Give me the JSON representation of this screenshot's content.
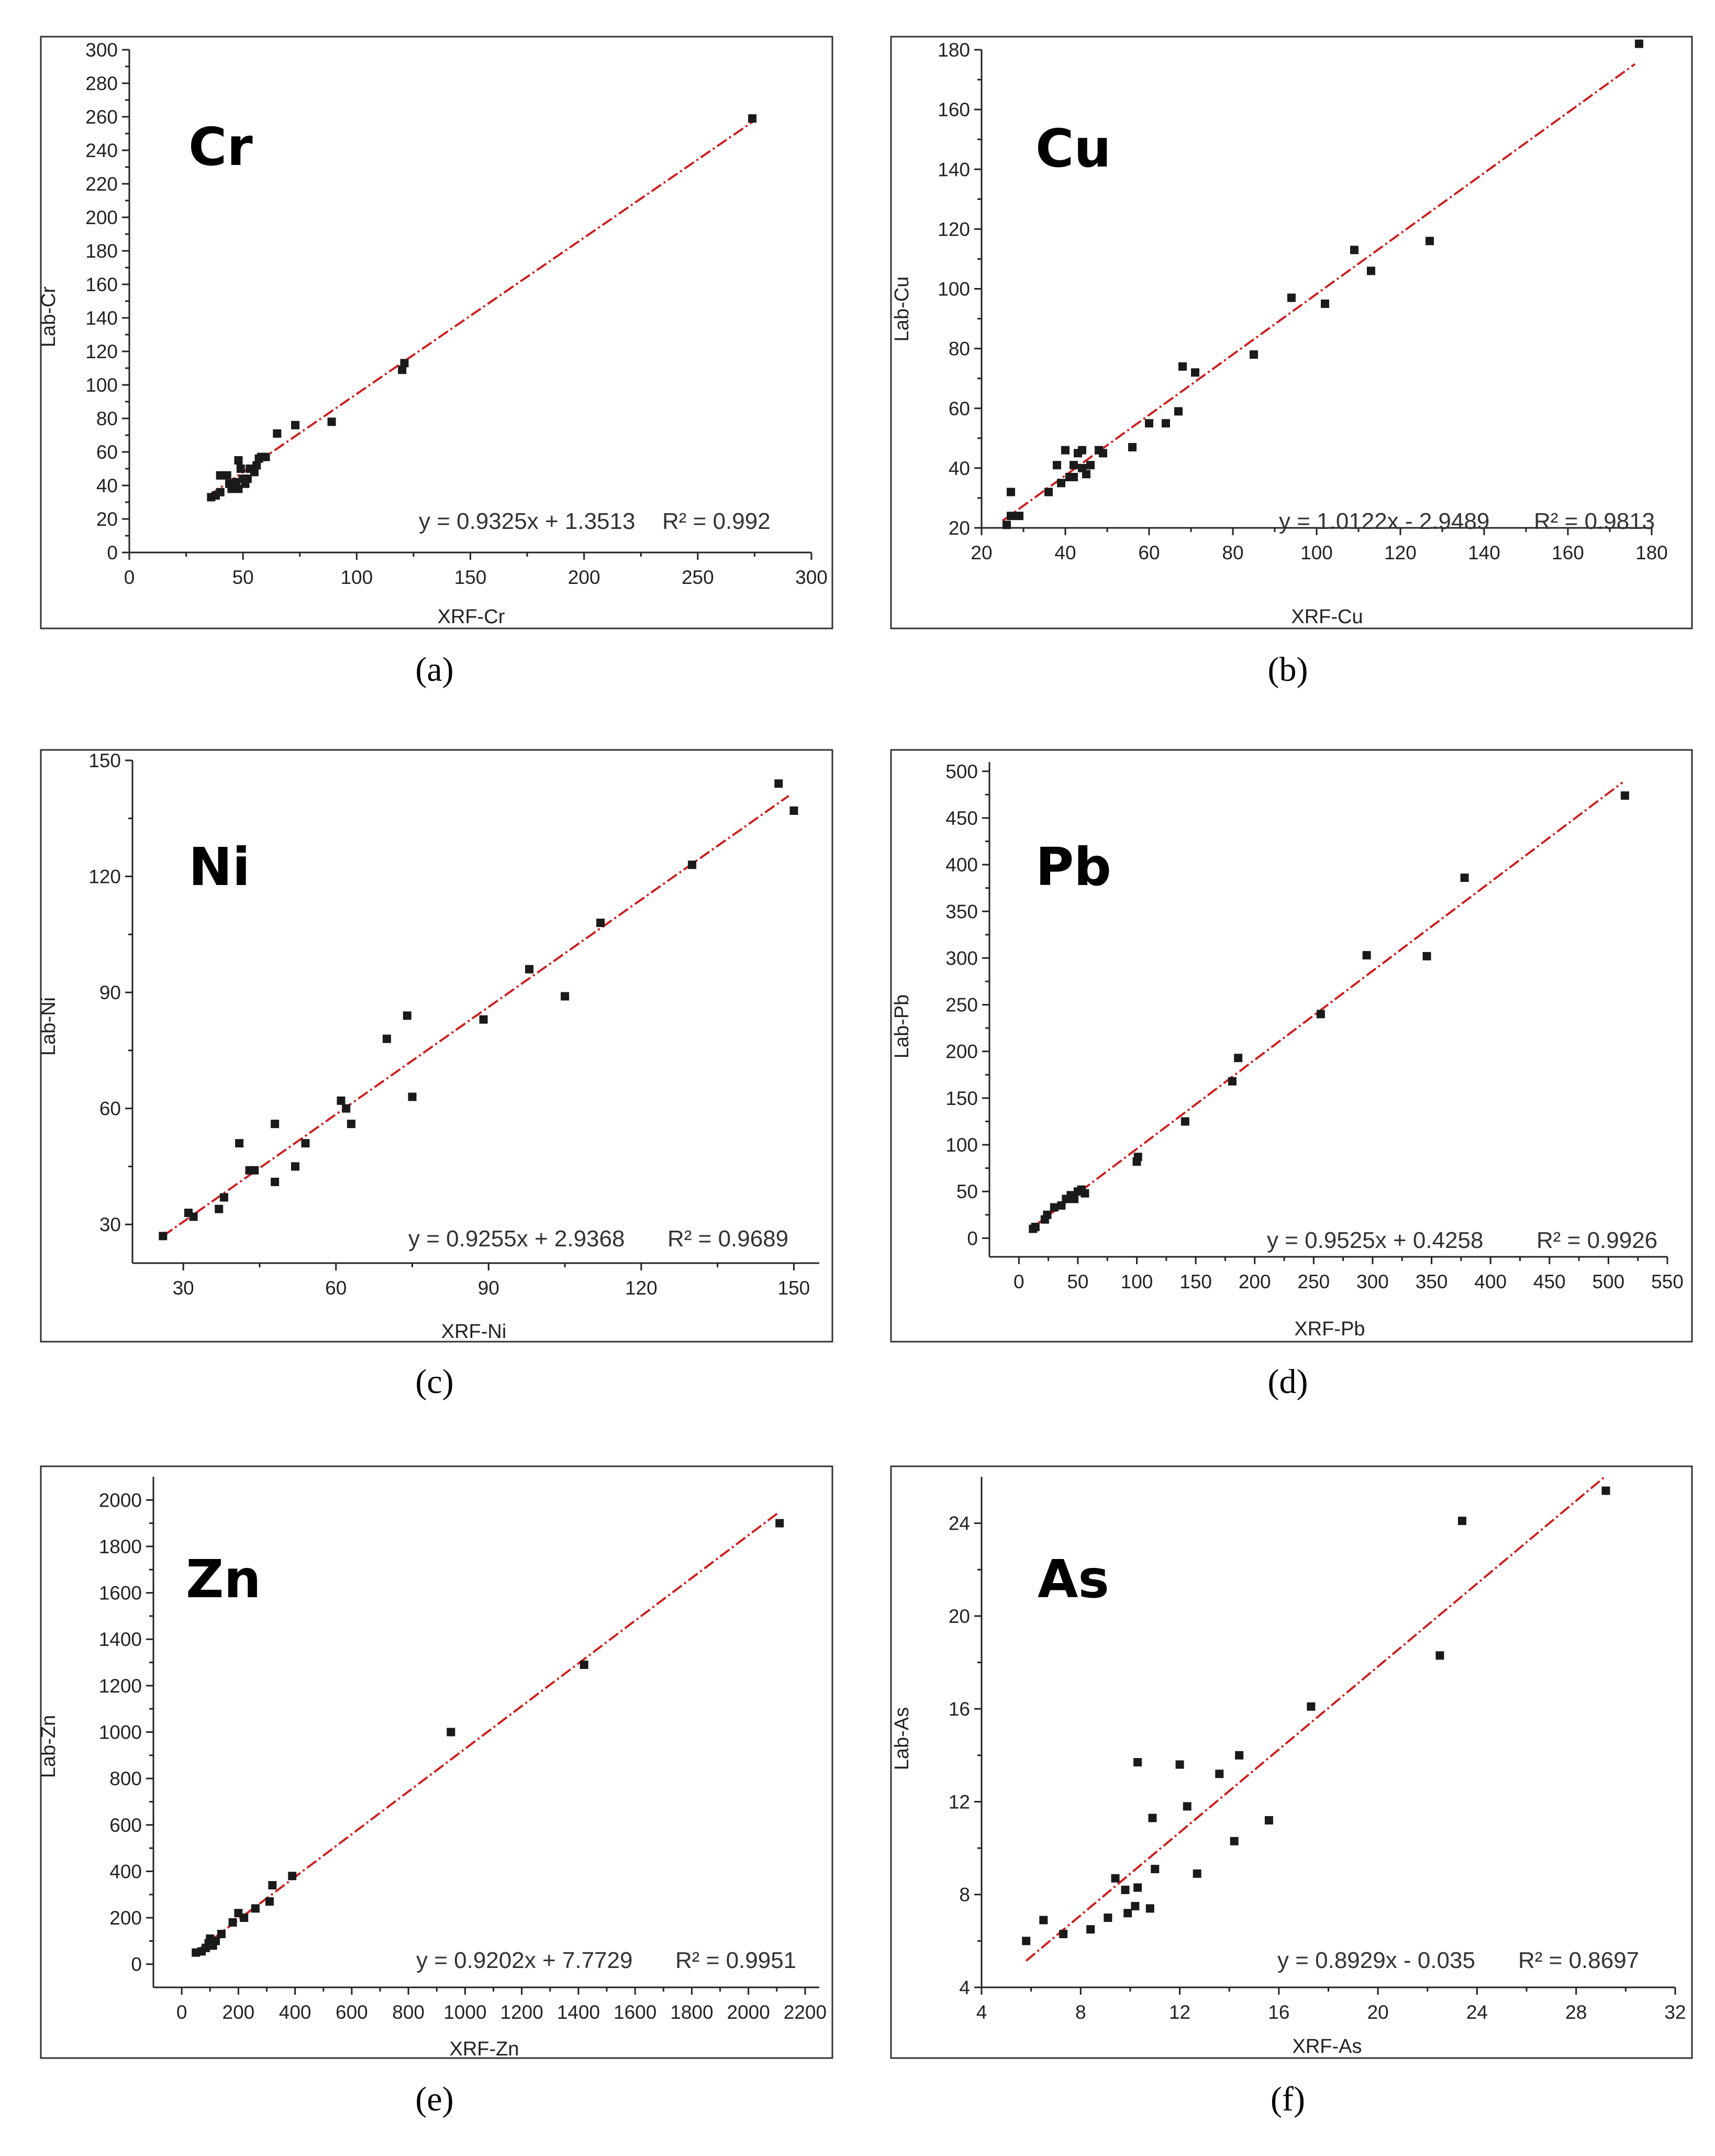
{
  "chart_data": [
    {
      "type": "scatter",
      "panel_label": "(a)",
      "title": "Cr",
      "xlabel": "XRF-Cr",
      "ylabel": "Lab-Cr",
      "xlim": [
        0,
        300
      ],
      "ylim": [
        0,
        300
      ],
      "xticks": [
        0,
        50,
        100,
        150,
        200,
        250,
        300
      ],
      "yticks": [
        0,
        20,
        40,
        60,
        80,
        100,
        120,
        140,
        160,
        180,
        200,
        220,
        240,
        260,
        280,
        300
      ],
      "equation": "y = 0.9325x + 1.3513",
      "r2": "R² = 0.992",
      "fit": {
        "slope": 0.9325,
        "intercept": 1.3513,
        "x_range": [
          35,
          275
        ]
      },
      "points": [
        [
          36,
          33
        ],
        [
          38,
          34
        ],
        [
          40,
          36
        ],
        [
          40,
          46
        ],
        [
          43,
          46
        ],
        [
          44,
          41
        ],
        [
          45,
          38
        ],
        [
          46,
          38
        ],
        [
          47,
          42
        ],
        [
          48,
          55
        ],
        [
          48,
          38
        ],
        [
          49,
          50
        ],
        [
          50,
          44
        ],
        [
          51,
          41
        ],
        [
          52,
          44
        ],
        [
          53,
          50
        ],
        [
          55,
          48
        ],
        [
          56,
          52
        ],
        [
          57,
          56
        ],
        [
          58,
          57
        ],
        [
          60,
          57
        ],
        [
          65,
          71
        ],
        [
          73,
          76
        ],
        [
          89,
          78
        ],
        [
          120,
          109
        ],
        [
          121,
          113
        ],
        [
          274,
          259
        ]
      ]
    },
    {
      "type": "scatter",
      "panel_label": "(b)",
      "title": "Cu",
      "xlabel": "XRF-Cu",
      "ylabel": "Lab-Cu",
      "xlim": [
        20,
        180
      ],
      "ylim": [
        20,
        180
      ],
      "xticks": [
        20,
        40,
        60,
        80,
        100,
        120,
        140,
        160,
        180
      ],
      "yticks": [
        20,
        40,
        60,
        80,
        100,
        120,
        140,
        160,
        180
      ],
      "equation": "y = 1.0122x - 2.9489",
      "r2": "R² = 0.9813",
      "fit": {
        "slope": 1.0122,
        "intercept": -2.9489,
        "x_range": [
          25,
          176
        ]
      },
      "points": [
        [
          26,
          21
        ],
        [
          27,
          32
        ],
        [
          27,
          24
        ],
        [
          29,
          24
        ],
        [
          36,
          32
        ],
        [
          38,
          41
        ],
        [
          39,
          35
        ],
        [
          40,
          46
        ],
        [
          41,
          37
        ],
        [
          42,
          41
        ],
        [
          42,
          37
        ],
        [
          43,
          45
        ],
        [
          44,
          46
        ],
        [
          44,
          40
        ],
        [
          45,
          38
        ],
        [
          46,
          41
        ],
        [
          48,
          46
        ],
        [
          49,
          45
        ],
        [
          56,
          47
        ],
        [
          60,
          55
        ],
        [
          64,
          55
        ],
        [
          67,
          59
        ],
        [
          68,
          74
        ],
        [
          71,
          72
        ],
        [
          85,
          78
        ],
        [
          94,
          97
        ],
        [
          102,
          95
        ],
        [
          109,
          113
        ],
        [
          113,
          106
        ],
        [
          127,
          116
        ],
        [
          177,
          182
        ]
      ]
    },
    {
      "type": "scatter",
      "panel_label": "(c)",
      "title": "Ni",
      "xlabel": "XRF-Ni",
      "ylabel": "Lab-Ni",
      "xlim": [
        20,
        155
      ],
      "ylim": [
        20,
        150
      ],
      "xticks": [
        30,
        60,
        90,
        120,
        150
      ],
      "yticks": [
        30,
        60,
        90,
        120,
        150
      ],
      "equation": "y = 0.9255x + 2.9368",
      "r2": "R² = 0.9689",
      "fit": {
        "slope": 0.9255,
        "intercept": 2.9368,
        "x_range": [
          26,
          149
        ]
      },
      "points": [
        [
          26,
          27
        ],
        [
          31,
          33
        ],
        [
          32,
          32
        ],
        [
          37,
          34
        ],
        [
          38,
          37
        ],
        [
          41,
          51
        ],
        [
          43,
          44
        ],
        [
          44,
          44
        ],
        [
          48,
          41
        ],
        [
          48,
          56
        ],
        [
          52,
          45
        ],
        [
          54,
          51
        ],
        [
          61,
          62
        ],
        [
          62,
          60
        ],
        [
          63,
          56
        ],
        [
          70,
          78
        ],
        [
          74,
          84
        ],
        [
          75,
          63
        ],
        [
          89,
          83
        ],
        [
          98,
          96
        ],
        [
          105,
          89
        ],
        [
          112,
          108
        ],
        [
          130,
          123
        ],
        [
          147,
          144
        ],
        [
          150,
          137
        ]
      ]
    },
    {
      "type": "scatter",
      "panel_label": "(d)",
      "title": "Pb",
      "xlabel": "XRF-Pb",
      "ylabel": "Lab-Pb",
      "xlim": [
        -25,
        550
      ],
      "ylim": [
        -20,
        510
      ],
      "xticks": [
        0,
        50,
        100,
        150,
        200,
        250,
        300,
        350,
        400,
        450,
        500,
        550
      ],
      "yticks": [
        0,
        50,
        100,
        150,
        200,
        250,
        300,
        350,
        400,
        450,
        500
      ],
      "equation": "y = 0.9525x + 0.4258",
      "r2": "R² = 0.9926",
      "fit": {
        "slope": 0.9525,
        "intercept": 0.4258,
        "x_range": [
          12,
          512
        ]
      },
      "points": [
        [
          12,
          10
        ],
        [
          14,
          12
        ],
        [
          22,
          20
        ],
        [
          24,
          25
        ],
        [
          30,
          33
        ],
        [
          36,
          35
        ],
        [
          40,
          42
        ],
        [
          44,
          46
        ],
        [
          47,
          42
        ],
        [
          50,
          50
        ],
        [
          53,
          52
        ],
        [
          56,
          48
        ],
        [
          100,
          82
        ],
        [
          101,
          87
        ],
        [
          141,
          125
        ],
        [
          181,
          168
        ],
        [
          186,
          193
        ],
        [
          256,
          240
        ],
        [
          295,
          303
        ],
        [
          346,
          302
        ],
        [
          378,
          386
        ],
        [
          514,
          474
        ]
      ]
    },
    {
      "type": "scatter",
      "panel_label": "(e)",
      "title": "Zn",
      "xlabel": "XRF-Zn",
      "ylabel": "Lab-Zn",
      "xlim": [
        -100,
        2250
      ],
      "ylim": [
        -100,
        2100
      ],
      "xticks": [
        0,
        200,
        400,
        600,
        800,
        1000,
        1200,
        1400,
        1600,
        1800,
        2000,
        2200
      ],
      "yticks": [
        0,
        200,
        400,
        600,
        800,
        1000,
        1200,
        1400,
        1600,
        1800,
        2000
      ],
      "equation": "y = 0.9202x + 7.7729",
      "r2": "R² = 0.9951",
      "fit": {
        "slope": 0.9202,
        "intercept": 7.7729,
        "x_range": [
          50,
          2110
        ]
      },
      "points": [
        [
          50,
          50
        ],
        [
          70,
          55
        ],
        [
          85,
          70
        ],
        [
          95,
          90
        ],
        [
          100,
          110
        ],
        [
          110,
          80
        ],
        [
          120,
          100
        ],
        [
          140,
          130
        ],
        [
          180,
          180
        ],
        [
          200,
          220
        ],
        [
          220,
          200
        ],
        [
          260,
          240
        ],
        [
          310,
          270
        ],
        [
          320,
          340
        ],
        [
          390,
          380
        ],
        [
          950,
          1000
        ],
        [
          1420,
          1290
        ],
        [
          2110,
          1900
        ]
      ]
    },
    {
      "type": "scatter",
      "panel_label": "(f)",
      "title": "As",
      "xlabel": "XRF-As",
      "ylabel": "Lab-As",
      "xlim": [
        4,
        32
      ],
      "ylim": [
        4,
        26
      ],
      "xticks": [
        4,
        8,
        12,
        16,
        20,
        24,
        28,
        32
      ],
      "yticks": [
        4,
        8,
        12,
        16,
        20,
        24
      ],
      "equation": "y = 0.8929x - 0.035",
      "r2": "R² = 0.8697",
      "fit": {
        "slope": 0.8929,
        "intercept": -0.035,
        "x_range": [
          5.8,
          29.2
        ]
      },
      "points": [
        [
          5.8,
          6.0
        ],
        [
          6.5,
          6.9
        ],
        [
          7.3,
          6.3
        ],
        [
          8.4,
          6.5
        ],
        [
          9.1,
          7.0
        ],
        [
          9.4,
          8.7
        ],
        [
          9.8,
          8.2
        ],
        [
          9.9,
          7.2
        ],
        [
          10.2,
          7.5
        ],
        [
          10.3,
          8.3
        ],
        [
          10.3,
          13.7
        ],
        [
          10.8,
          7.4
        ],
        [
          10.9,
          11.3
        ],
        [
          11.0,
          9.1
        ],
        [
          12.0,
          13.6
        ],
        [
          12.3,
          11.8
        ],
        [
          12.7,
          8.9
        ],
        [
          13.6,
          13.2
        ],
        [
          14.2,
          10.3
        ],
        [
          14.4,
          14.0
        ],
        [
          15.6,
          11.2
        ],
        [
          17.3,
          16.1
        ],
        [
          22.5,
          18.3
        ],
        [
          23.4,
          24.1
        ],
        [
          29.2,
          25.4
        ]
      ]
    }
  ]
}
